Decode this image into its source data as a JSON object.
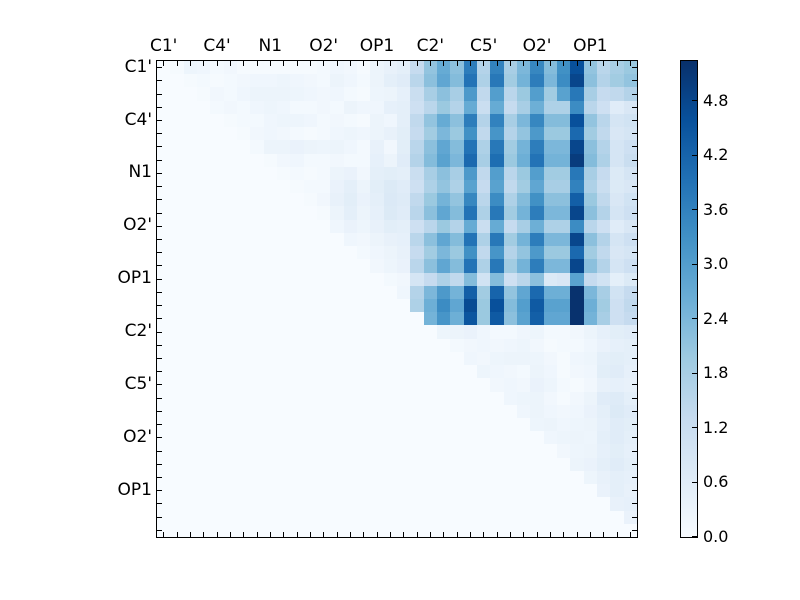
{
  "chart_data": {
    "type": "heatmap",
    "title": "",
    "colormap": "Blues",
    "vmin": 0,
    "vmax": 5.24,
    "n": 36,
    "tick_label_positions": [
      0,
      4,
      8,
      12,
      16,
      20,
      24,
      28,
      32
    ],
    "x_tick_labels": [
      "C1'",
      "C4'",
      "N1",
      "O2'",
      "OP1",
      "C2'",
      "C5'",
      "O2'",
      "OP1"
    ],
    "y_tick_labels": [
      "C1'",
      "C4'",
      "N1",
      "O2'",
      "OP1",
      "C2'",
      "C5'",
      "O2'",
      "OP1"
    ],
    "axes": {
      "grid": false,
      "tick_direction": "in",
      "x_labels_position": "top",
      "y_labels_position": "left"
    },
    "colorbar": {
      "side": "right",
      "tick_values": [
        0.0,
        0.6,
        1.2,
        1.8,
        2.4,
        3.0,
        3.6,
        4.2,
        4.8
      ],
      "tick_labels": [
        "0.0",
        "0.6",
        "1.2",
        "1.8",
        "2.4",
        "3.0",
        "3.6",
        "4.2",
        "4.8"
      ]
    },
    "colormap_stops": [
      "#f7fbff",
      "#deebf7",
      "#c6dbef",
      "#9ecae1",
      "#6baed6",
      "#4292c6",
      "#2171b5",
      "#08519c",
      "#08306b"
    ],
    "matrix": [
      [
        0,
        0.05,
        0.25,
        0.2,
        0.1,
        0.15,
        0.05,
        0.05,
        0.05,
        0.05,
        0.05,
        0.05,
        0.1,
        0.2,
        0.15,
        0.05,
        0.3,
        0.4,
        0.5,
        1.3,
        2.1,
        2.7,
        2.2,
        3.7,
        1.6,
        3.6,
        1.8,
        2.4,
        3.5,
        2.3,
        3.3,
        4.6,
        2.1,
        1.5,
        1.8,
        2.0
      ],
      [
        0,
        0,
        0.05,
        0.1,
        0.05,
        0.1,
        0.15,
        0.2,
        0.2,
        0.25,
        0.2,
        0.15,
        0.1,
        0.3,
        0.2,
        0.1,
        0.3,
        0.5,
        0.6,
        1.5,
        2.2,
        2.8,
        2.3,
        3.9,
        1.7,
        3.8,
        1.9,
        2.5,
        3.7,
        2.4,
        3.4,
        4.8,
        2.2,
        1.6,
        1.9,
        2.1
      ],
      [
        0,
        0,
        0,
        0.05,
        0.15,
        0.1,
        0.2,
        0.3,
        0.3,
        0.3,
        0.25,
        0.2,
        0.15,
        0.2,
        0.1,
        0.05,
        0.25,
        0.3,
        0.45,
        1.2,
        1.8,
        2.2,
        1.8,
        3.1,
        1.4,
        3.0,
        1.5,
        2.0,
        3.0,
        1.9,
        2.9,
        3.8,
        1.8,
        1.3,
        1.4,
        1.6
      ],
      [
        0,
        0,
        0,
        0,
        0.1,
        0.15,
        0.1,
        0.2,
        0.25,
        0.2,
        0.1,
        0.1,
        0.15,
        0.1,
        0.3,
        0.2,
        0.2,
        0.45,
        0.5,
        1.1,
        1.5,
        2.0,
        1.6,
        2.7,
        1.2,
        2.7,
        1.3,
        1.8,
        2.6,
        1.7,
        1.7,
        3.4,
        1.5,
        1.1,
        0.6,
        0.8
      ],
      [
        0,
        0,
        0,
        0,
        0,
        0.05,
        0.1,
        0.1,
        0.2,
        0.25,
        0.25,
        0.2,
        0.1,
        0.15,
        0.1,
        0.05,
        0.3,
        0.2,
        0.5,
        1.4,
        2.1,
        2.7,
        2.2,
        3.7,
        1.6,
        3.6,
        1.8,
        2.4,
        3.5,
        2.3,
        2.3,
        4.6,
        2.1,
        1.5,
        0.9,
        1.0
      ],
      [
        0,
        0,
        0,
        0,
        0,
        0,
        0.05,
        0.15,
        0.2,
        0.15,
        0.1,
        0.05,
        0.1,
        0.2,
        0.25,
        0.2,
        0.3,
        0.4,
        0.55,
        1.3,
        1.9,
        2.4,
        2.0,
        3.3,
        1.4,
        3.2,
        1.6,
        2.1,
        3.1,
        2.0,
        2.0,
        4.1,
        1.9,
        1.4,
        0.8,
        0.9
      ],
      [
        0,
        0,
        0,
        0,
        0,
        0,
        0,
        0.1,
        0.3,
        0.3,
        0.35,
        0.3,
        0.25,
        0.3,
        0.2,
        0.1,
        0.4,
        0.15,
        0.55,
        1.5,
        2.2,
        2.8,
        2.3,
        3.9,
        1.7,
        3.8,
        1.9,
        2.5,
        3.7,
        2.4,
        2.4,
        4.8,
        2.2,
        1.6,
        0.9,
        1.1
      ],
      [
        0,
        0,
        0,
        0,
        0,
        0,
        0,
        0,
        0.05,
        0.15,
        0.2,
        0.1,
        0.1,
        0.15,
        0.1,
        0.1,
        0.45,
        0.3,
        0.6,
        1.6,
        2.3,
        2.9,
        2.4,
        4.1,
        1.8,
        4.0,
        2.0,
        2.6,
        3.9,
        2.5,
        2.5,
        5.0,
        2.3,
        1.7,
        0.9,
        1.2
      ],
      [
        0,
        0,
        0,
        0,
        0,
        0,
        0,
        0,
        0,
        0.05,
        0.1,
        0.05,
        0.1,
        0.3,
        0.35,
        0.15,
        0.5,
        0.55,
        0.5,
        1.2,
        1.8,
        2.2,
        1.8,
        3.1,
        1.4,
        3.0,
        1.5,
        2.0,
        3.0,
        1.9,
        1.9,
        3.8,
        1.8,
        1.3,
        0.7,
        0.9
      ],
      [
        0,
        0,
        0,
        0,
        0,
        0,
        0,
        0,
        0,
        0,
        0.05,
        0.1,
        0.1,
        0.35,
        0.5,
        0.3,
        0.55,
        0.7,
        0.6,
        1.1,
        1.7,
        2.1,
        1.7,
        2.9,
        1.3,
        2.9,
        1.4,
        1.9,
        2.8,
        1.8,
        1.8,
        3.6,
        1.7,
        1.2,
        0.7,
        0.8
      ],
      [
        0,
        0,
        0,
        0,
        0,
        0,
        0,
        0,
        0,
        0,
        0,
        0.05,
        0.15,
        0.4,
        0.55,
        0.35,
        0.5,
        0.75,
        0.65,
        1.4,
        2.0,
        2.5,
        2.1,
        3.5,
        1.5,
        3.4,
        1.7,
        2.3,
        3.3,
        2.2,
        2.2,
        4.3,
        2.0,
        1.4,
        0.8,
        1.0
      ],
      [
        0,
        0,
        0,
        0,
        0,
        0,
        0,
        0,
        0,
        0,
        0,
        0,
        0.05,
        0.3,
        0.5,
        0.3,
        0.45,
        0.7,
        0.6,
        1.5,
        2.2,
        2.8,
        2.3,
        3.9,
        1.7,
        3.8,
        1.9,
        2.5,
        3.7,
        2.4,
        2.4,
        4.8,
        2.2,
        1.6,
        0.9,
        1.1
      ],
      [
        0,
        0,
        0,
        0,
        0,
        0,
        0,
        0,
        0,
        0,
        0,
        0,
        0,
        0.2,
        0.35,
        0.25,
        0.4,
        0.55,
        0.5,
        1.1,
        1.5,
        2.0,
        1.6,
        2.7,
        1.2,
        2.7,
        1.3,
        1.8,
        2.6,
        1.7,
        1.7,
        3.4,
        1.5,
        1.1,
        0.6,
        0.8
      ],
      [
        0,
        0,
        0,
        0,
        0,
        0,
        0,
        0,
        0,
        0,
        0,
        0,
        0,
        0,
        0.2,
        0.15,
        0.3,
        0.4,
        0.45,
        1.5,
        2.2,
        2.8,
        2.3,
        3.9,
        1.7,
        3.8,
        1.9,
        2.5,
        3.7,
        2.4,
        2.4,
        4.8,
        2.2,
        1.6,
        0.9,
        1.1
      ],
      [
        0,
        0,
        0,
        0,
        0,
        0,
        0,
        0,
        0,
        0,
        0,
        0,
        0,
        0,
        0,
        0.1,
        0.2,
        0.3,
        0.4,
        1.3,
        1.9,
        2.4,
        2.0,
        3.3,
        1.4,
        3.2,
        1.6,
        2.1,
        3.1,
        2.0,
        2.0,
        4.1,
        1.9,
        1.4,
        0.8,
        0.9
      ],
      [
        0,
        0,
        0,
        0,
        0,
        0,
        0,
        0,
        0,
        0,
        0,
        0,
        0,
        0,
        0,
        0,
        0.15,
        0.25,
        0.35,
        1.5,
        2.2,
        2.8,
        2.3,
        3.9,
        1.7,
        3.8,
        1.9,
        2.5,
        3.7,
        2.4,
        2.4,
        4.8,
        2.2,
        1.6,
        0.9,
        1.1
      ],
      [
        0,
        0,
        0,
        0,
        0,
        0,
        0,
        0,
        0,
        0,
        0,
        0,
        0,
        0,
        0,
        0,
        0,
        0.1,
        0.15,
        0.9,
        1.3,
        1.7,
        1.4,
        2.3,
        1.0,
        2.3,
        1.1,
        1.5,
        2.2,
        0.7,
        0.8,
        2.9,
        1.3,
        1.0,
        0.5,
        0.7
      ],
      [
        0,
        0,
        0,
        0,
        0,
        0,
        0,
        0,
        0,
        0,
        0,
        0,
        0,
        0,
        0,
        0,
        0,
        0,
        0.2,
        1.6,
        2.4,
        3.1,
        2.5,
        4.3,
        1.9,
        4.2,
        2.1,
        2.8,
        4.1,
        2.6,
        2.6,
        5.2,
        2.4,
        1.8,
        1.0,
        1.3
      ],
      [
        0,
        0,
        0,
        0,
        0,
        0,
        0,
        0,
        0,
        0,
        0,
        0,
        0,
        0,
        0,
        0,
        0,
        0,
        0,
        1.7,
        2.6,
        3.4,
        2.8,
        4.7,
        2.0,
        4.6,
        2.3,
        3.0,
        4.4,
        2.9,
        2.9,
        5.2,
        2.6,
        1.9,
        1.1,
        1.4
      ],
      [
        0,
        0,
        0,
        0,
        0,
        0,
        0,
        0,
        0,
        0,
        0,
        0,
        0,
        0,
        0,
        0,
        0,
        0,
        0,
        0,
        2.5,
        3.2,
        2.6,
        4.5,
        2.0,
        4.4,
        2.2,
        2.9,
        4.3,
        2.8,
        2.8,
        5.2,
        2.5,
        1.8,
        1.1,
        1.3
      ],
      [
        0,
        0,
        0,
        0,
        0,
        0,
        0,
        0,
        0,
        0,
        0,
        0,
        0,
        0,
        0,
        0,
        0,
        0,
        0,
        0,
        0,
        0.25,
        0.3,
        0.35,
        0.2,
        0.1,
        0.1,
        0.2,
        0.25,
        0.1,
        0.1,
        0.15,
        0.3,
        0.45,
        0.55,
        0.6
      ],
      [
        0,
        0,
        0,
        0,
        0,
        0,
        0,
        0,
        0,
        0,
        0,
        0,
        0,
        0,
        0,
        0,
        0,
        0,
        0,
        0,
        0,
        0,
        0.1,
        0.15,
        0.2,
        0.15,
        0.2,
        0.25,
        0.15,
        0.05,
        0.1,
        0.1,
        0.2,
        0.35,
        0.45,
        0.5
      ],
      [
        0,
        0,
        0,
        0,
        0,
        0,
        0,
        0,
        0,
        0,
        0,
        0,
        0,
        0,
        0,
        0,
        0,
        0,
        0,
        0,
        0,
        0,
        0,
        0.2,
        0.15,
        0.25,
        0.3,
        0.3,
        0.25,
        0.15,
        0.05,
        0.2,
        0.25,
        0.5,
        0.55,
        0.5
      ],
      [
        0,
        0,
        0,
        0,
        0,
        0,
        0,
        0,
        0,
        0,
        0,
        0,
        0,
        0,
        0,
        0,
        0,
        0,
        0,
        0,
        0,
        0,
        0,
        0,
        0.25,
        0.2,
        0.15,
        0.1,
        0.3,
        0.2,
        0.05,
        0.15,
        0.2,
        0.55,
        0.6,
        0.45
      ],
      [
        0,
        0,
        0,
        0,
        0,
        0,
        0,
        0,
        0,
        0,
        0,
        0,
        0,
        0,
        0,
        0,
        0,
        0,
        0,
        0,
        0,
        0,
        0,
        0,
        0,
        0.15,
        0.2,
        0.15,
        0.35,
        0.25,
        0.1,
        0.05,
        0.15,
        0.4,
        0.45,
        0.4
      ],
      [
        0,
        0,
        0,
        0,
        0,
        0,
        0,
        0,
        0,
        0,
        0,
        0,
        0,
        0,
        0,
        0,
        0,
        0,
        0,
        0,
        0,
        0,
        0,
        0,
        0,
        0,
        0.2,
        0.25,
        0.3,
        0.15,
        0.05,
        0.15,
        0.3,
        0.6,
        0.65,
        0.5
      ],
      [
        0,
        0,
        0,
        0,
        0,
        0,
        0,
        0,
        0,
        0,
        0,
        0,
        0,
        0,
        0,
        0,
        0,
        0,
        0,
        0,
        0,
        0,
        0,
        0,
        0,
        0,
        0,
        0.2,
        0.3,
        0.2,
        0.15,
        0.2,
        0.35,
        0.5,
        0.7,
        0.6
      ],
      [
        0,
        0,
        0,
        0,
        0,
        0,
        0,
        0,
        0,
        0,
        0,
        0,
        0,
        0,
        0,
        0,
        0,
        0,
        0,
        0,
        0,
        0,
        0,
        0,
        0,
        0,
        0,
        0,
        0.25,
        0.3,
        0.2,
        0.25,
        0.3,
        0.45,
        0.6,
        0.55
      ],
      [
        0,
        0,
        0,
        0,
        0,
        0,
        0,
        0,
        0,
        0,
        0,
        0,
        0,
        0,
        0,
        0,
        0,
        0,
        0,
        0,
        0,
        0,
        0,
        0,
        0,
        0,
        0,
        0,
        0,
        0.2,
        0.25,
        0.3,
        0.25,
        0.5,
        0.6,
        0.5
      ],
      [
        0,
        0,
        0,
        0,
        0,
        0,
        0,
        0,
        0,
        0,
        0,
        0,
        0,
        0,
        0,
        0,
        0,
        0,
        0,
        0,
        0,
        0,
        0,
        0,
        0,
        0,
        0,
        0,
        0,
        0,
        0.15,
        0.25,
        0.3,
        0.45,
        0.55,
        0.45
      ],
      [
        0,
        0,
        0,
        0,
        0,
        0,
        0,
        0,
        0,
        0,
        0,
        0,
        0,
        0,
        0,
        0,
        0,
        0,
        0,
        0,
        0,
        0,
        0,
        0,
        0,
        0,
        0,
        0,
        0,
        0,
        0,
        0.3,
        0.35,
        0.5,
        0.6,
        0.5
      ],
      [
        0,
        0,
        0,
        0,
        0,
        0,
        0,
        0,
        0,
        0,
        0,
        0,
        0,
        0,
        0,
        0,
        0,
        0,
        0,
        0,
        0,
        0,
        0,
        0,
        0,
        0,
        0,
        0,
        0,
        0,
        0,
        0,
        0.25,
        0.4,
        0.5,
        0.45
      ],
      [
        0,
        0,
        0,
        0,
        0,
        0,
        0,
        0,
        0,
        0,
        0,
        0,
        0,
        0,
        0,
        0,
        0,
        0,
        0,
        0,
        0,
        0,
        0,
        0,
        0,
        0,
        0,
        0,
        0,
        0,
        0,
        0,
        0,
        0.35,
        0.5,
        0.4
      ],
      [
        0,
        0,
        0,
        0,
        0,
        0,
        0,
        0,
        0,
        0,
        0,
        0,
        0,
        0,
        0,
        0,
        0,
        0,
        0,
        0,
        0,
        0,
        0,
        0,
        0,
        0,
        0,
        0,
        0,
        0,
        0,
        0,
        0,
        0,
        0.4,
        0.45
      ],
      [
        0,
        0,
        0,
        0,
        0,
        0,
        0,
        0,
        0,
        0,
        0,
        0,
        0,
        0,
        0,
        0,
        0,
        0,
        0,
        0,
        0,
        0,
        0,
        0,
        0,
        0,
        0,
        0,
        0,
        0,
        0,
        0,
        0,
        0,
        0,
        0.35
      ],
      [
        0,
        0,
        0,
        0,
        0,
        0,
        0,
        0,
        0,
        0,
        0,
        0,
        0,
        0,
        0,
        0,
        0,
        0,
        0,
        0,
        0,
        0,
        0,
        0,
        0,
        0,
        0,
        0,
        0,
        0,
        0,
        0,
        0,
        0,
        0,
        0
      ]
    ]
  },
  "colors": {
    "background": "#ffffff",
    "spine": "#000000",
    "text": "#000000",
    "cell_zero": "#f7fbff"
  }
}
